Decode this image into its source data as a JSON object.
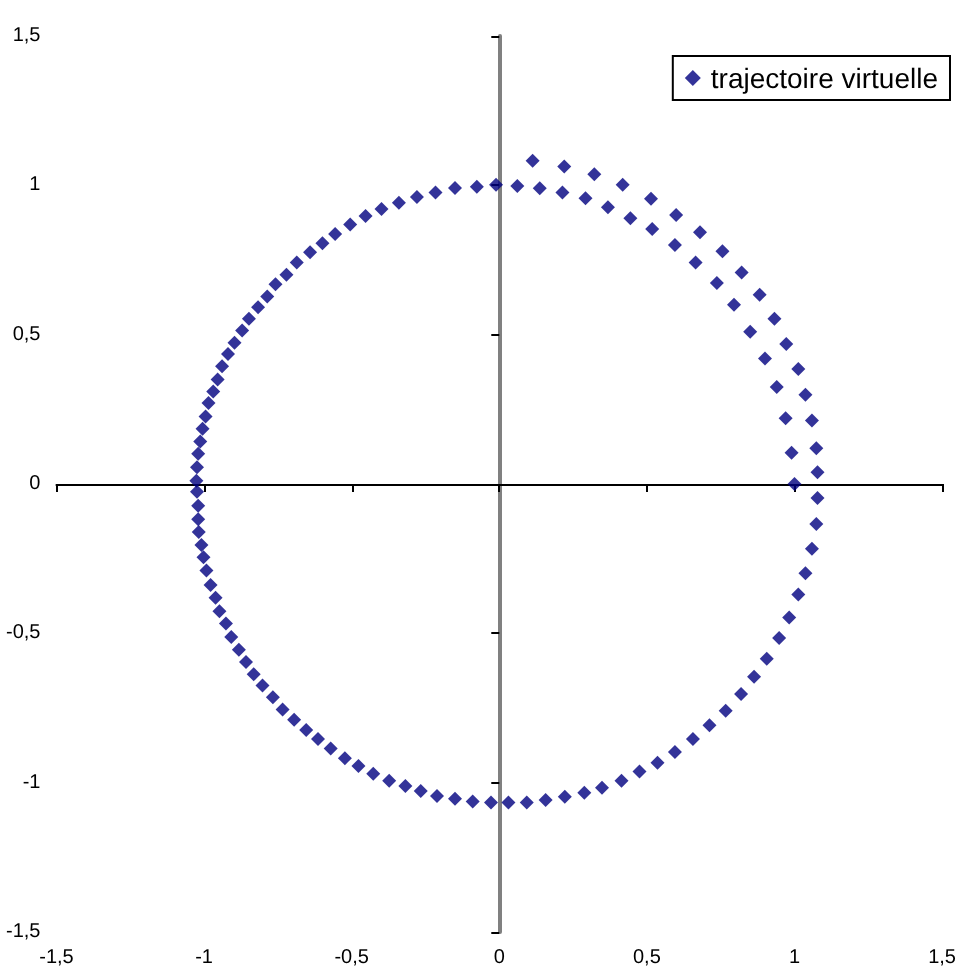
{
  "chart_data": {
    "type": "scatter",
    "marker": "diamond",
    "grid": false,
    "legend": "top right",
    "xlim": [
      -1.5,
      1.5
    ],
    "ylim": [
      -1.5,
      1.5
    ],
    "xticks": [
      {
        "value": -1.5,
        "label": "-1,5"
      },
      -1,
      {
        "value": -0.5,
        "label": "-0,5"
      },
      0,
      {
        "value": 0.5,
        "label": "0,5"
      },
      1,
      {
        "value": 1.5,
        "label": "1,5"
      }
    ],
    "yticks": [
      {
        "value": -1.5,
        "label": "-1,5"
      },
      -1,
      {
        "value": -0.5,
        "label": "-0,5"
      },
      0,
      {
        "value": 0.5,
        "label": "0,5"
      },
      1,
      {
        "value": 1.5,
        "label": "1,5"
      }
    ],
    "series": [
      {
        "name": "trajectoire virtuelle",
        "color": "#000080",
        "x": [
          1.0,
          0.99,
          0.97,
          0.94,
          0.9,
          0.85,
          0.795,
          0.737,
          0.665,
          0.595,
          0.518,
          0.444,
          0.368,
          0.292,
          0.214,
          0.137,
          0.061,
          -0.011,
          -0.076,
          -0.15,
          -0.216,
          -0.279,
          -0.34,
          -0.399,
          -0.453,
          -0.505,
          -0.556,
          -0.599,
          -0.641,
          -0.686,
          -0.721,
          -0.758,
          -0.786,
          -0.817,
          -0.848,
          -0.871,
          -0.897,
          -0.919,
          -0.939,
          -0.954,
          -0.969,
          -0.985,
          -0.995,
          -1.005,
          -1.013,
          -1.02,
          -1.024,
          -1.026,
          -1.024,
          -1.02,
          -1.02,
          -1.018,
          -1.009,
          -1.002,
          -0.992,
          -0.978,
          -0.961,
          -0.948,
          -0.926,
          -0.908,
          -0.882,
          -0.858,
          -0.832,
          -0.802,
          -0.767,
          -0.734,
          -0.695,
          -0.654,
          -0.614,
          -0.571,
          -0.523,
          -0.477,
          -0.427,
          -0.373,
          -0.318,
          -0.266,
          -0.211,
          -0.15,
          -0.09,
          -0.028,
          0.031,
          0.093,
          0.157,
          0.222,
          0.288,
          0.348,
          0.414,
          0.475,
          0.536,
          0.595,
          0.656,
          0.712,
          0.767,
          0.819,
          0.863,
          0.906,
          0.948,
          0.982,
          1.013,
          1.037,
          1.059,
          1.074,
          1.078,
          1.078,
          1.074,
          1.059,
          1.037,
          1.013,
          0.972,
          0.932,
          0.882,
          0.821,
          0.756,
          0.68,
          0.599,
          0.514,
          0.418,
          0.322,
          0.22,
          0.113
        ],
        "values": [
          0,
          0.105,
          0.22,
          0.325,
          0.42,
          0.51,
          0.6,
          0.673,
          0.742,
          0.8,
          0.854,
          0.89,
          0.927,
          0.957,
          0.976,
          0.99,
          0.998,
          1.002,
          0.995,
          0.991,
          0.976,
          0.961,
          0.942,
          0.921,
          0.897,
          0.869,
          0.837,
          0.806,
          0.776,
          0.742,
          0.701,
          0.669,
          0.628,
          0.592,
          0.553,
          0.514,
          0.473,
          0.435,
          0.394,
          0.35,
          0.31,
          0.271,
          0.226,
          0.185,
          0.142,
          0.101,
          0.056,
          0.011,
          -0.026,
          -0.073,
          -0.118,
          -0.161,
          -0.204,
          -0.245,
          -0.29,
          -0.338,
          -0.381,
          -0.426,
          -0.467,
          -0.512,
          -0.555,
          -0.596,
          -0.637,
          -0.675,
          -0.714,
          -0.755,
          -0.789,
          -0.824,
          -0.854,
          -0.886,
          -0.918,
          -0.944,
          -0.97,
          -0.994,
          -1.011,
          -1.028,
          -1.045,
          -1.054,
          -1.063,
          -1.066,
          -1.066,
          -1.066,
          -1.058,
          -1.047,
          -1.034,
          -1.017,
          -0.994,
          -0.963,
          -0.933,
          -0.897,
          -0.854,
          -0.808,
          -0.759,
          -0.703,
          -0.645,
          -0.585,
          -0.516,
          -0.447,
          -0.37,
          -0.299,
          -0.217,
          -0.134,
          -0.047,
          0.039,
          0.12,
          0.213,
          0.299,
          0.385,
          0.469,
          0.553,
          0.634,
          0.708,
          0.779,
          0.843,
          0.901,
          0.955,
          1.002,
          1.037,
          1.063,
          1.082
        ]
      }
    ]
  }
}
